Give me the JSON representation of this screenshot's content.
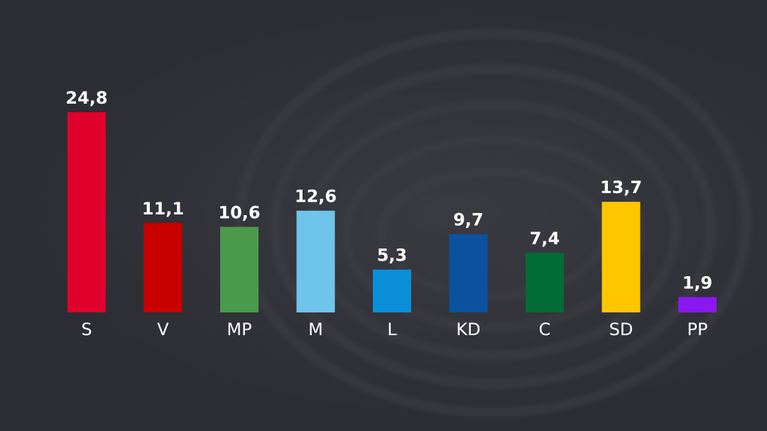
{
  "chart_data": {
    "type": "bar",
    "categories": [
      "S",
      "V",
      "MP",
      "M",
      "L",
      "KD",
      "C",
      "SD",
      "PP"
    ],
    "values": [
      24.8,
      11.1,
      10.6,
      12.6,
      5.3,
      9.7,
      7.4,
      13.7,
      1.9
    ],
    "value_labels": [
      "24,8",
      "11,1",
      "10,6",
      "12,6",
      "5,3",
      "9,7",
      "7,4",
      "13,7",
      "1,9"
    ],
    "colors": [
      "#e0002c",
      "#c80000",
      "#4a9a4a",
      "#6ec4ea",
      "#0a8fd8",
      "#0a52a0",
      "#036b35",
      "#fec600",
      "#8a18f0"
    ],
    "title": "",
    "xlabel": "",
    "ylabel": "",
    "ylim": [
      0,
      24.8
    ],
    "grid": false,
    "legend": "none"
  }
}
